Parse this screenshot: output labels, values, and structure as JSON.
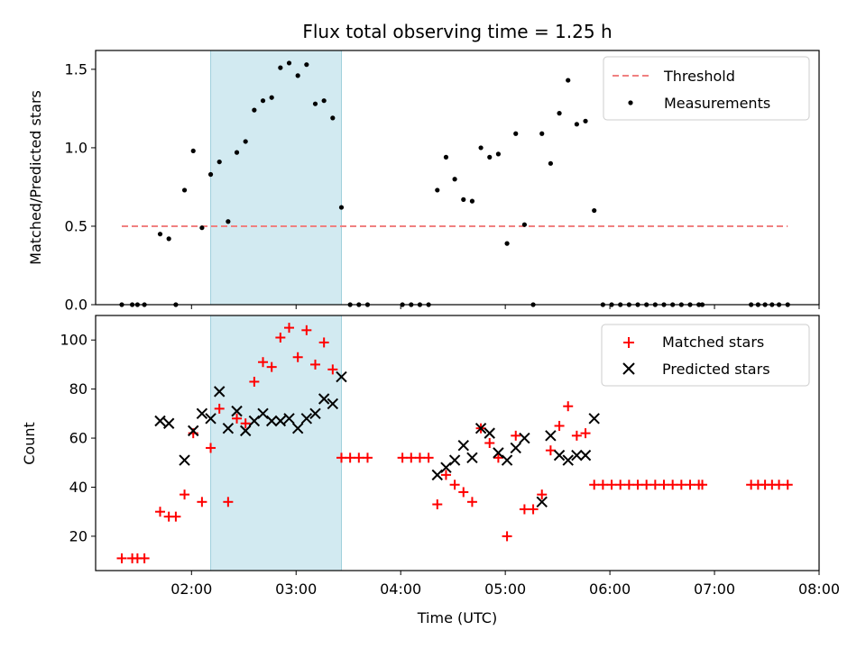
{
  "chart_data": [
    {
      "type": "scatter",
      "title": "Flux total observing time = 1.25 h",
      "ylabel": "Matched/Predicted stars",
      "xlabel": "",
      "xlim": [
        "01:05",
        "08:00"
      ],
      "ylim": [
        0,
        1.62
      ],
      "yticks": [
        0.0,
        0.5,
        1.0,
        1.5
      ],
      "ytick_labels": [
        "0.0",
        "0.5",
        "1.0",
        "1.5"
      ],
      "xticks": [
        "02:00",
        "03:00",
        "04:00",
        "05:00",
        "06:00",
        "07:00",
        "08:00"
      ],
      "highlight_span": [
        "02:11",
        "03:26"
      ],
      "legend_position": "top-right",
      "threshold": {
        "name": "Threshold",
        "value": 0.5,
        "x_range": [
          "01:20",
          "07:42"
        ],
        "color": "#f08080"
      },
      "series": [
        {
          "name": "Measurements",
          "color": "#000000",
          "marker": "dot",
          "points": [
            [
              "01:20",
              0
            ],
            [
              "01:26",
              0
            ],
            [
              "01:29",
              0
            ],
            [
              "01:33",
              0
            ],
            [
              "01:42",
              0.45
            ],
            [
              "01:47",
              0.42
            ],
            [
              "01:51",
              0
            ],
            [
              "01:56",
              0.73
            ],
            [
              "02:01",
              0.98
            ],
            [
              "02:06",
              0.49
            ],
            [
              "02:11",
              0.83
            ],
            [
              "02:16",
              0.91
            ],
            [
              "02:21",
              0.53
            ],
            [
              "02:26",
              0.97
            ],
            [
              "02:31",
              1.04
            ],
            [
              "02:36",
              1.24
            ],
            [
              "02:41",
              1.3
            ],
            [
              "02:46",
              1.32
            ],
            [
              "02:51",
              1.51
            ],
            [
              "02:56",
              1.54
            ],
            [
              "03:01",
              1.46
            ],
            [
              "03:06",
              1.53
            ],
            [
              "03:11",
              1.28
            ],
            [
              "03:16",
              1.3
            ],
            [
              "03:21",
              1.19
            ],
            [
              "03:26",
              0.62
            ],
            [
              "03:31",
              0
            ],
            [
              "03:36",
              0
            ],
            [
              "03:41",
              0
            ],
            [
              "04:01",
              0
            ],
            [
              "04:06",
              0
            ],
            [
              "04:11",
              0
            ],
            [
              "04:16",
              0
            ],
            [
              "04:21",
              0.73
            ],
            [
              "04:26",
              0.94
            ],
            [
              "04:31",
              0.8
            ],
            [
              "04:36",
              0.67
            ],
            [
              "04:41",
              0.66
            ],
            [
              "04:46",
              1.0
            ],
            [
              "04:51",
              0.94
            ],
            [
              "04:56",
              0.96
            ],
            [
              "05:01",
              0.39
            ],
            [
              "05:06",
              1.09
            ],
            [
              "05:11",
              0.51
            ],
            [
              "05:16",
              0
            ],
            [
              "05:21",
              1.09
            ],
            [
              "05:26",
              0.9
            ],
            [
              "05:31",
              1.22
            ],
            [
              "05:36",
              1.43
            ],
            [
              "05:41",
              1.15
            ],
            [
              "05:46",
              1.17
            ],
            [
              "05:51",
              0.6
            ],
            [
              "05:56",
              0
            ],
            [
              "06:01",
              0
            ],
            [
              "06:06",
              0
            ],
            [
              "06:11",
              0
            ],
            [
              "06:16",
              0
            ],
            [
              "06:21",
              0
            ],
            [
              "06:26",
              0
            ],
            [
              "06:31",
              0
            ],
            [
              "06:36",
              0
            ],
            [
              "06:41",
              0
            ],
            [
              "06:46",
              0
            ],
            [
              "06:51",
              0
            ],
            [
              "06:53",
              0
            ],
            [
              "07:21",
              0
            ],
            [
              "07:25",
              0
            ],
            [
              "07:29",
              0
            ],
            [
              "07:33",
              0
            ],
            [
              "07:37",
              0
            ],
            [
              "07:42",
              0
            ]
          ]
        }
      ]
    },
    {
      "type": "scatter",
      "title": "",
      "ylabel": "Count",
      "xlabel": "Time (UTC)",
      "xlim": [
        "01:05",
        "08:00"
      ],
      "ylim": [
        6,
        110
      ],
      "yticks": [
        20,
        40,
        60,
        80,
        100
      ],
      "xticks": [
        "02:00",
        "03:00",
        "04:00",
        "05:00",
        "06:00",
        "07:00",
        "08:00"
      ],
      "highlight_span": [
        "02:11",
        "03:26"
      ],
      "legend_position": "top-right",
      "series": [
        {
          "name": "Matched stars",
          "color": "#ff0000",
          "marker": "plus",
          "points": [
            [
              "01:20",
              11
            ],
            [
              "01:26",
              11
            ],
            [
              "01:29",
              11
            ],
            [
              "01:33",
              11
            ],
            [
              "01:42",
              30
            ],
            [
              "01:47",
              28
            ],
            [
              "01:51",
              28
            ],
            [
              "01:56",
              37
            ],
            [
              "02:01",
              62
            ],
            [
              "02:06",
              34
            ],
            [
              "02:11",
              56
            ],
            [
              "02:16",
              72
            ],
            [
              "02:21",
              34
            ],
            [
              "02:26",
              68
            ],
            [
              "02:31",
              66
            ],
            [
              "02:36",
              83
            ],
            [
              "02:41",
              91
            ],
            [
              "02:46",
              89
            ],
            [
              "02:51",
              101
            ],
            [
              "02:56",
              105
            ],
            [
              "03:01",
              93
            ],
            [
              "03:06",
              104
            ],
            [
              "03:11",
              90
            ],
            [
              "03:16",
              99
            ],
            [
              "03:21",
              88
            ],
            [
              "03:26",
              52
            ],
            [
              "03:31",
              52
            ],
            [
              "03:36",
              52
            ],
            [
              "03:41",
              52
            ],
            [
              "04:01",
              52
            ],
            [
              "04:06",
              52
            ],
            [
              "04:11",
              52
            ],
            [
              "04:16",
              52
            ],
            [
              "04:21",
              33
            ],
            [
              "04:26",
              45
            ],
            [
              "04:31",
              41
            ],
            [
              "04:36",
              38
            ],
            [
              "04:41",
              34
            ],
            [
              "04:46",
              64
            ],
            [
              "04:51",
              58
            ],
            [
              "04:56",
              52
            ],
            [
              "05:01",
              20
            ],
            [
              "05:06",
              61
            ],
            [
              "05:11",
              31
            ],
            [
              "05:16",
              31
            ],
            [
              "05:21",
              37
            ],
            [
              "05:26",
              55
            ],
            [
              "05:31",
              65
            ],
            [
              "05:36",
              73
            ],
            [
              "05:41",
              61
            ],
            [
              "05:46",
              62
            ],
            [
              "05:51",
              41
            ],
            [
              "05:56",
              41
            ],
            [
              "06:01",
              41
            ],
            [
              "06:06",
              41
            ],
            [
              "06:11",
              41
            ],
            [
              "06:16",
              41
            ],
            [
              "06:21",
              41
            ],
            [
              "06:26",
              41
            ],
            [
              "06:31",
              41
            ],
            [
              "06:36",
              41
            ],
            [
              "06:41",
              41
            ],
            [
              "06:46",
              41
            ],
            [
              "06:51",
              41
            ],
            [
              "06:53",
              41
            ],
            [
              "07:21",
              41
            ],
            [
              "07:25",
              41
            ],
            [
              "07:29",
              41
            ],
            [
              "07:33",
              41
            ],
            [
              "07:37",
              41
            ],
            [
              "07:42",
              41
            ]
          ]
        },
        {
          "name": "Predicted stars",
          "color": "#000000",
          "marker": "x",
          "points": [
            [
              "01:42",
              67
            ],
            [
              "01:47",
              66
            ],
            [
              "01:56",
              51
            ],
            [
              "02:01",
              63
            ],
            [
              "02:06",
              70
            ],
            [
              "02:11",
              68
            ],
            [
              "02:16",
              79
            ],
            [
              "02:21",
              64
            ],
            [
              "02:26",
              71
            ],
            [
              "02:31",
              63
            ],
            [
              "02:36",
              67
            ],
            [
              "02:41",
              70
            ],
            [
              "02:46",
              67
            ],
            [
              "02:51",
              67
            ],
            [
              "02:56",
              68
            ],
            [
              "03:01",
              64
            ],
            [
              "03:06",
              68
            ],
            [
              "03:11",
              70
            ],
            [
              "03:16",
              76
            ],
            [
              "03:21",
              74
            ],
            [
              "03:26",
              85
            ],
            [
              "04:21",
              45
            ],
            [
              "04:26",
              48
            ],
            [
              "04:31",
              51
            ],
            [
              "04:36",
              57
            ],
            [
              "04:41",
              52
            ],
            [
              "04:46",
              64
            ],
            [
              "04:51",
              62
            ],
            [
              "04:56",
              54
            ],
            [
              "05:01",
              51
            ],
            [
              "05:06",
              56
            ],
            [
              "05:11",
              60
            ],
            [
              "05:21",
              34
            ],
            [
              "05:26",
              61
            ],
            [
              "05:31",
              53
            ],
            [
              "05:36",
              51
            ],
            [
              "05:41",
              53
            ],
            [
              "05:46",
              53
            ],
            [
              "05:51",
              68
            ]
          ]
        }
      ]
    }
  ]
}
